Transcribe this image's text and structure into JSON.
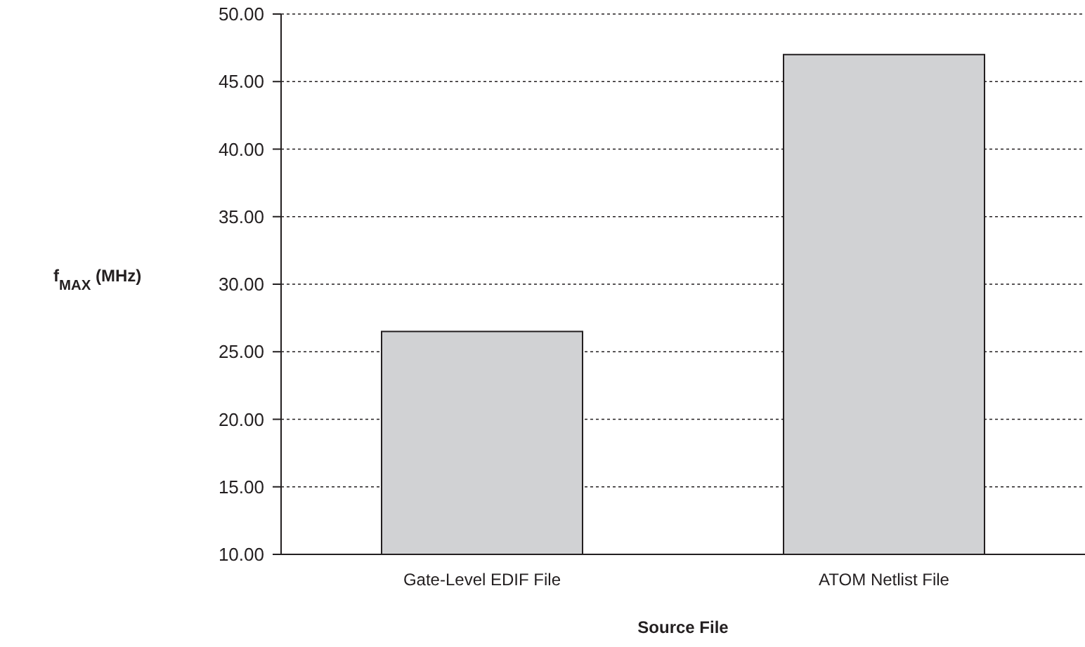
{
  "chart_data": {
    "type": "bar",
    "xlabel": "Source File",
    "ylabel": "f$_{MAX}$ (MHz)",
    "categories": [
      "Gate-Level EDIF File",
      "ATOM Netlist File"
    ],
    "values": [
      26.5,
      47.0
    ],
    "color": "#d1d2d4",
    "ylim": [
      10,
      50
    ],
    "yticks": [
      {
        "value": 10,
        "label": "10.00"
      },
      {
        "value": 15,
        "label": "15.00"
      },
      {
        "value": 20,
        "label": "20.00"
      },
      {
        "value": 25,
        "label": "25.00"
      },
      {
        "value": 30,
        "label": "30.00"
      },
      {
        "value": 35,
        "label": "35.00"
      },
      {
        "value": 40,
        "label": "40.00"
      },
      {
        "value": 45,
        "label": "45.00"
      },
      {
        "value": 50,
        "label": "50.00"
      }
    ],
    "grid": "y"
  }
}
